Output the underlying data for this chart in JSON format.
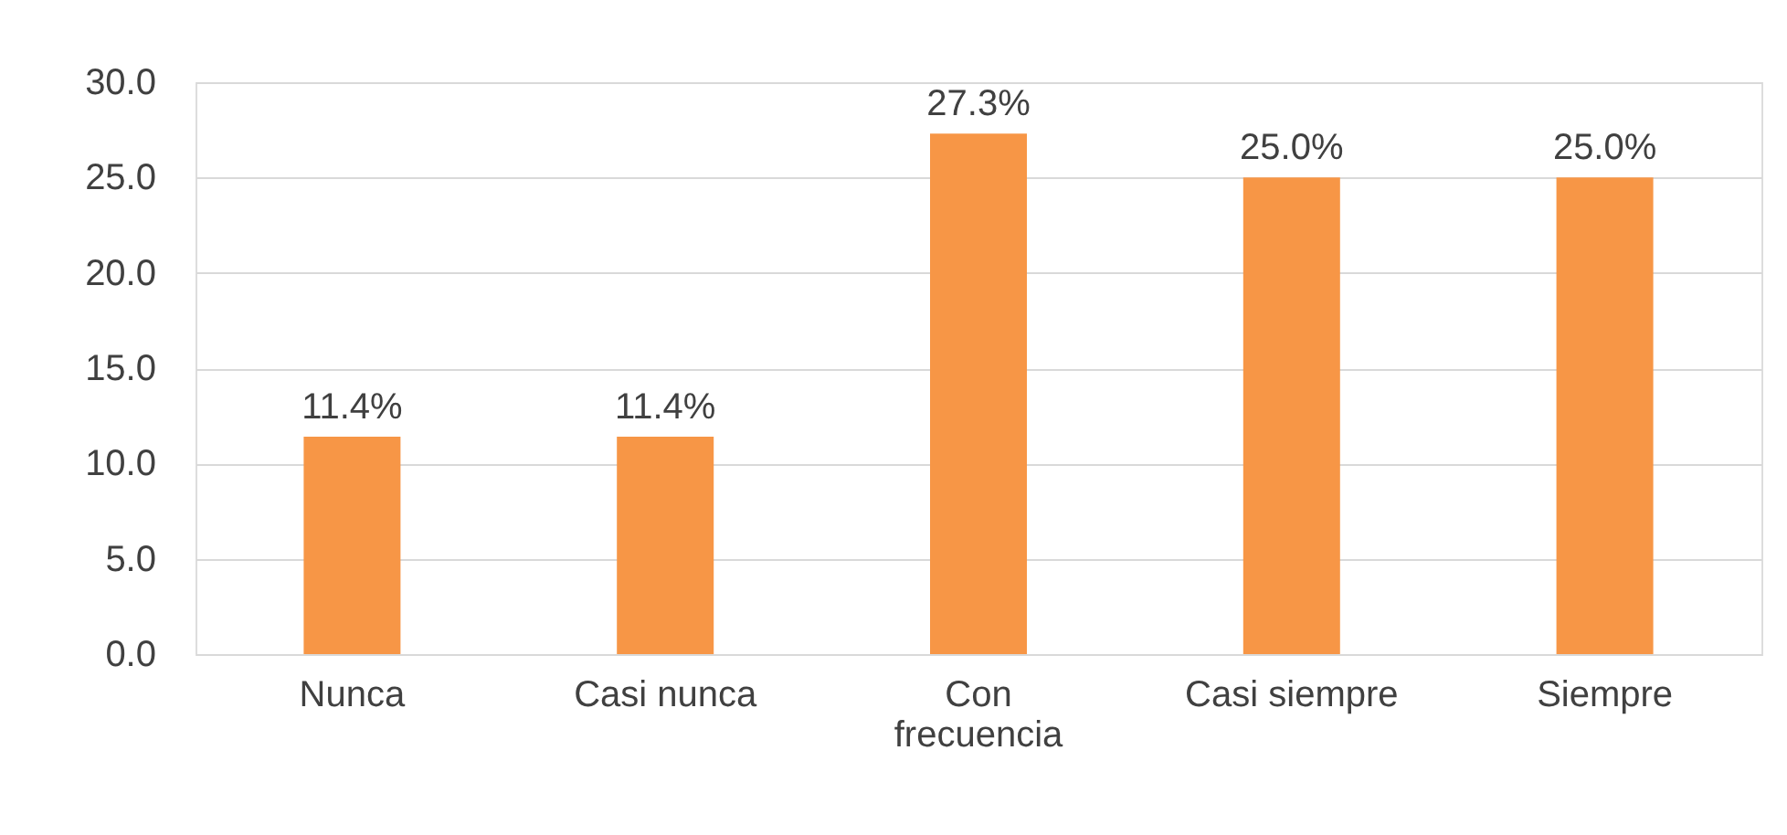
{
  "chart_data": {
    "type": "bar",
    "categories": [
      "Nunca",
      "Casi nunca",
      "Con frecuencia",
      "Casi siempre",
      "Siempre"
    ],
    "values": [
      11.4,
      11.4,
      27.3,
      25.0,
      25.0
    ],
    "value_labels": [
      "11.4%",
      "11.4%",
      "27.3%",
      "25.0%",
      "25.0%"
    ],
    "color": "#f79646",
    "ylim": [
      0,
      30
    ],
    "yticks": [
      {
        "value": 0,
        "label": "0.0"
      },
      {
        "value": 5,
        "label": "5.0"
      },
      {
        "value": 10,
        "label": "10.0"
      },
      {
        "value": 15,
        "label": "15.0"
      },
      {
        "value": 20,
        "label": "20.0"
      },
      {
        "value": 25,
        "label": "25.0"
      },
      {
        "value": 30,
        "label": "30.0"
      }
    ],
    "grid": "y"
  }
}
